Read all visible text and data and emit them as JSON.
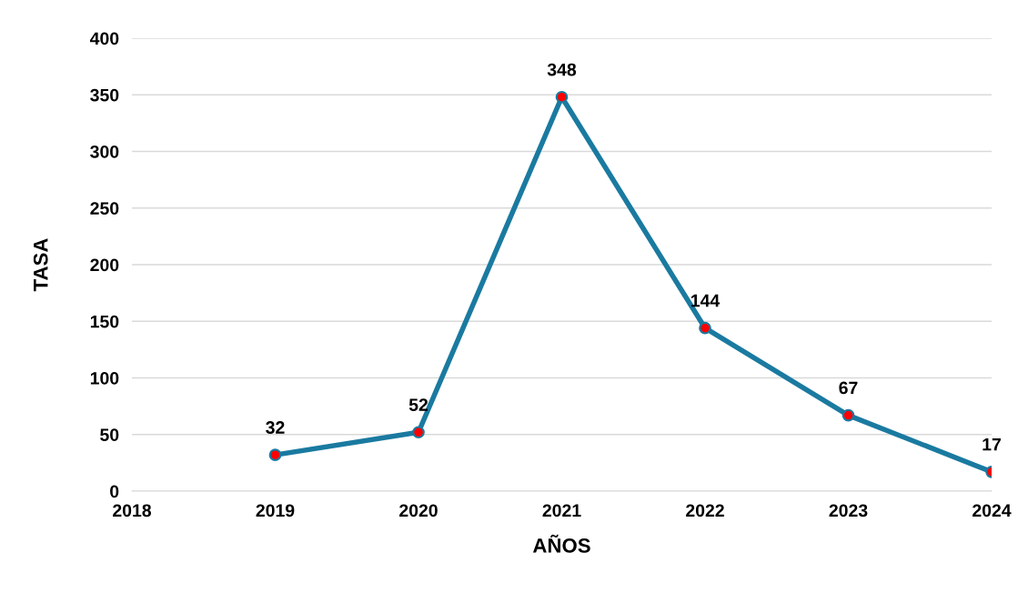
{
  "chart_data": {
    "type": "line",
    "xlabel": "AÑOS",
    "ylabel": "TASA",
    "x": [
      2019,
      2020,
      2021,
      2022,
      2023,
      2024
    ],
    "series": [
      {
        "color": "#1a7aa0",
        "colors": [
          "#ff0000",
          "#ff0000",
          "#ff0000",
          "#ff0000",
          "#ff0000",
          "#ff0000"
        ],
        "values": [
          32,
          52,
          348,
          144,
          67,
          17
        ]
      }
    ],
    "xlim": [
      2018,
      2024
    ],
    "xticks": [
      2018,
      2019,
      2020,
      2021,
      2022,
      2023,
      2024
    ],
    "ylim": [
      0,
      400
    ],
    "yticks": [
      0,
      50,
      100,
      150,
      200,
      250,
      300,
      350,
      400
    ],
    "grid": "y",
    "marker": "circle",
    "line_style": "solid",
    "data_labels": true
  }
}
